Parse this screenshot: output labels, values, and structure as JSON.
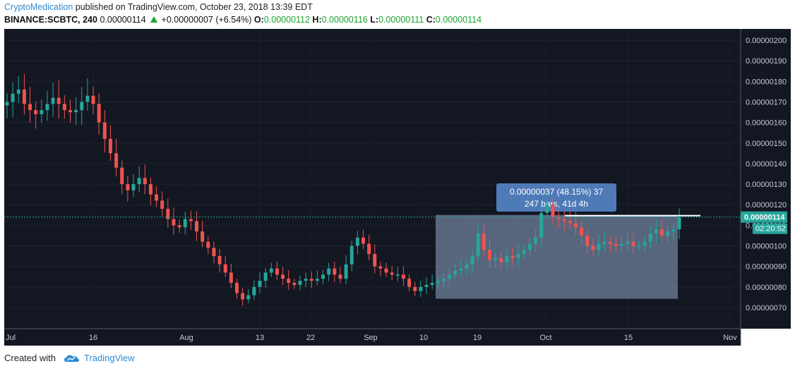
{
  "header": {
    "author": "CryptoMedication",
    "published": "published on TradingView.com, October 23, 2018 13:39 EDT",
    "symbol": "BINANCE:SCBTC, 240",
    "last": "0.00000114",
    "change": "+0.00000007 (+6.54%)",
    "o_label": "O:",
    "o_val": "0.00000112",
    "h_label": "H:",
    "h_val": "0.00000116",
    "l_label": "L:",
    "l_val": "0.00000111",
    "c_label": "C:",
    "c_val": "0.00000114"
  },
  "footer": {
    "created_with": "Created with",
    "brand": "TradingView"
  },
  "colors": {
    "background": "#131722",
    "up": "#26a69a",
    "down": "#ef5350",
    "accent": "#2a8ad4",
    "price_line": "#26a69a"
  },
  "chart_data": {
    "type": "candlestick",
    "title": "",
    "ylim": [
      6.5e-07,
      2.05e-06
    ],
    "yticks": [
      "0.00000200",
      "0.00000190",
      "0.00000180",
      "0.00000170",
      "0.00000160",
      "0.00000150",
      "0.00000140",
      "0.00000130",
      "0.00000120",
      "0.00000110",
      "0.00000100",
      "0.00000090",
      "0.00000080",
      "0.00000070"
    ],
    "xticks": [
      "Jul",
      "16",
      "Aug",
      "13",
      "22",
      "Sep",
      "10",
      "19",
      "Oct",
      "15",
      "Nov"
    ],
    "price_close": [
      1.7e-06,
      1.74e-06,
      1.76e-06,
      1.69e-06,
      1.66e-06,
      1.64e-06,
      1.66e-06,
      1.69e-06,
      1.72e-06,
      1.69e-06,
      1.66e-06,
      1.65e-06,
      1.66e-06,
      1.7e-06,
      1.73e-06,
      1.69e-06,
      1.6e-06,
      1.52e-06,
      1.45e-06,
      1.38e-06,
      1.3e-06,
      1.27e-06,
      1.3e-06,
      1.33e-06,
      1.3e-06,
      1.25e-06,
      1.22e-06,
      1.18e-06,
      1.13e-06,
      1.1e-06,
      1.09e-06,
      1.13e-06,
      1.12e-06,
      1.07e-06,
      1.02e-06,
      9.9e-07,
      9.5e-07,
      9.1e-07,
      8.7e-07,
      8.2e-07,
      7.7e-07,
      7.4e-07,
      7.6e-07,
      8e-07,
      8.3e-07,
      8.7e-07,
      8.9e-07,
      8.6e-07,
      8.4e-07,
      8.2e-07,
      8.1e-07,
      8.3e-07,
      8.4e-07,
      8.3e-07,
      8.4e-07,
      8.6e-07,
      8.9e-07,
      8.6e-07,
      8.4e-07,
      9.1e-07,
      1e-06,
      1.04e-06,
      1.01e-06,
      9.6e-07,
      9e-07,
      8.9e-07,
      8.7e-07,
      8.6e-07,
      8.6e-07,
      8.4e-07,
      8e-07,
      7.8e-07,
      8e-07,
      8.1e-07,
      8.2e-07,
      8.3e-07,
      8.4e-07,
      8.6e-07,
      8.8e-07,
      8.9e-07,
      9.1e-07,
      9.5e-07,
      1.06e-06,
      9.8e-07,
      9.3e-07,
      9.4e-07,
      9.2e-07,
      9.5e-07,
      9.4e-07,
      9.6e-07,
      9.8e-07,
      1.01e-06,
      1.04e-06,
      1.16e-06,
      1.2e-06,
      1.14e-06,
      1.13e-06,
      1.12e-06,
      1.11e-06,
      1.09e-06,
      1.05e-06,
      1e-06,
      9.8e-07,
      1.01e-06,
      1.02e-06,
      1.01e-06,
      1e-06,
      1.01e-06,
      1.02e-06,
      1e-06,
      1e-06,
      1.02e-06,
      1.06e-06,
      1.08e-06,
      1.05e-06,
      1.07e-06,
      1.08e-06,
      1.14e-06
    ],
    "measure": {
      "label_line1": "0.00000037 (48.15%) 37",
      "label_line2": "247 bars, 41d 4h",
      "from_price": 7.7e-07,
      "to_price": 1.14e-06
    },
    "price_label": "0.00000114",
    "countdown": "02:20:52"
  }
}
